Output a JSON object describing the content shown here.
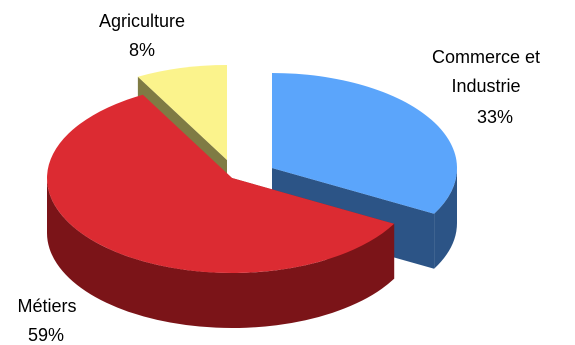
{
  "chart_data": {
    "type": "pie",
    "title": "",
    "three_d": true,
    "exploded": true,
    "legend": "none",
    "slices": [
      {
        "name": "Commerce et Industrie",
        "label_lines": [
          "Commerce et",
          "Industrie"
        ],
        "value": 33,
        "value_label": "33%",
        "color": "#5ba5fb",
        "side_color": "#2c5486"
      },
      {
        "name": "Métiers",
        "label_lines": [
          "Métiers"
        ],
        "value": 59,
        "value_label": "59%",
        "color": "#dc2b32",
        "side_color": "#7b1418"
      },
      {
        "name": "Agriculture",
        "label_lines": [
          "Agriculture"
        ],
        "value": 8,
        "value_label": "8%",
        "color": "#fbf38c",
        "side_color": "#7f7b44"
      }
    ]
  }
}
